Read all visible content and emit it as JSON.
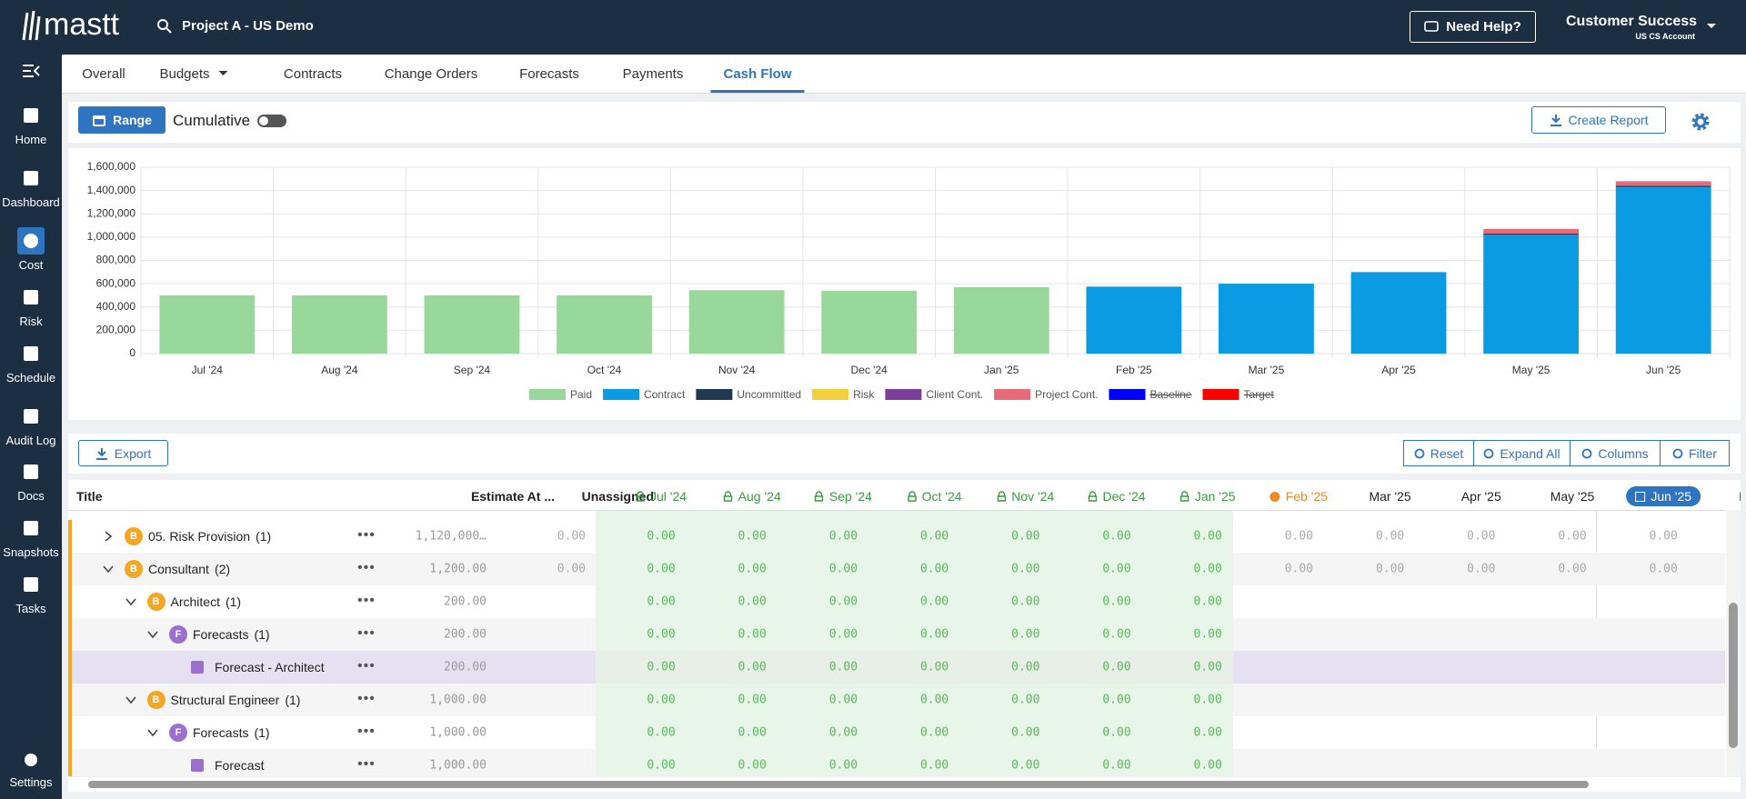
{
  "header": {
    "logo": "mastt",
    "project": "Project A - US Demo",
    "help": "Need Help?",
    "user": "Customer Success",
    "account": "US CS Account"
  },
  "sidebar": {
    "items": [
      "Home",
      "Dashboard",
      "Cost",
      "Risk",
      "Schedule",
      "Audit Log",
      "Docs",
      "Snapshots",
      "Tasks"
    ],
    "active": "Cost",
    "footer": "Settings"
  },
  "tabs": {
    "items": [
      "Overall",
      "Budgets",
      "Contracts",
      "Change Orders",
      "Forecasts",
      "Payments",
      "Cash Flow"
    ],
    "active": "Cash Flow"
  },
  "toolbar": {
    "range": "Range",
    "cumulative": "Cumulative",
    "report": "Create Report"
  },
  "chart_data": {
    "type": "stacked-bar",
    "categories": [
      "Jul '24",
      "Aug '24",
      "Sep '24",
      "Oct '24",
      "Nov '24",
      "Dec '24",
      "Jan '25",
      "Feb '25",
      "Mar '25",
      "Apr '25",
      "May '25",
      "Jun '25"
    ],
    "series": [
      {
        "name": "Paid",
        "color": "#98d99b",
        "values": [
          500000,
          500000,
          500000,
          500000,
          545000,
          540000,
          570000,
          0,
          0,
          0,
          0,
          0
        ]
      },
      {
        "name": "Contract",
        "color": "#0a9be3",
        "values": [
          0,
          0,
          0,
          0,
          0,
          0,
          0,
          575000,
          600000,
          700000,
          1020000,
          1430000
        ]
      },
      {
        "name": "Uncommitted",
        "color": "#1f3a52",
        "values": [
          0,
          0,
          0,
          0,
          0,
          0,
          0,
          0,
          0,
          0,
          10000,
          10000
        ]
      },
      {
        "name": "Risk",
        "color": "#f2d03b",
        "values": [
          0,
          0,
          0,
          0,
          0,
          0,
          0,
          0,
          0,
          0,
          0,
          0
        ]
      },
      {
        "name": "Client Cont.",
        "color": "#7b3f99",
        "values": [
          0,
          0,
          0,
          0,
          0,
          0,
          0,
          0,
          0,
          0,
          0,
          0
        ]
      },
      {
        "name": "Project Cont.",
        "color": "#e86b7a",
        "values": [
          0,
          0,
          0,
          0,
          0,
          0,
          0,
          0,
          0,
          0,
          40000,
          40000
        ]
      },
      {
        "name": "Baseline",
        "color": "#0000ff",
        "hidden": true,
        "values": [
          null,
          null,
          null,
          null,
          null,
          null,
          null,
          null,
          null,
          null,
          null,
          null
        ]
      },
      {
        "name": "Target",
        "color": "#ff0000",
        "hidden": true,
        "values": [
          null,
          null,
          null,
          null,
          null,
          null,
          null,
          null,
          null,
          null,
          null,
          null
        ]
      }
    ],
    "ylim": [
      0,
      1600000
    ],
    "yticks": [
      0,
      {
        "value": 200000,
        "label": "200,000"
      },
      {
        "value": 400000,
        "label": "400,000"
      },
      {
        "value": 600000,
        "label": "600,000"
      },
      {
        "value": 800000,
        "label": "800,000"
      },
      {
        "value": 1000000,
        "label": "1,000,000"
      },
      {
        "value": 1200000,
        "label": "1,200,000"
      },
      {
        "value": 1400000,
        "label": "1,400,000"
      },
      {
        "value": 1600000,
        "label": "1,600,000"
      }
    ],
    "grid": true,
    "legend": "bottom"
  },
  "table_toolbar": {
    "export": "Export",
    "buttons": [
      "Reset",
      "Expand All",
      "Columns",
      "Filter"
    ]
  },
  "table": {
    "columns": [
      "Title",
      "Estimate At ...",
      "Unassigned",
      "Jul '24",
      "Aug '24",
      "Sep '24",
      "Oct '24",
      "Nov '24",
      "Dec '24",
      "Jan '25",
      "Feb '25",
      "Mar '25",
      "Apr '25",
      "May '25",
      "Jun '25",
      "Paid '"
    ],
    "locked": 7,
    "current": "Feb '25",
    "selected": "Jun '25",
    "rows": [
      {
        "title": "05. Risk Provision",
        "count": "(1)",
        "badge": "B",
        "level": 0,
        "expanded": false,
        "estimate": "1,120,000…",
        "unassigned": "0.00",
        "cells": [
          "0.00",
          "0.00",
          "0.00",
          "0.00",
          "0.00",
          "0.00",
          "0.00",
          "0.00",
          "0.00",
          "0.00",
          "0.00",
          "0.00"
        ]
      },
      {
        "title": "Consultant",
        "count": "(2)",
        "badge": "B",
        "level": 0,
        "expanded": true,
        "estimate": "1,200.00",
        "unassigned": "0.00",
        "cells": [
          "0.00",
          "0.00",
          "0.00",
          "0.00",
          "0.00",
          "0.00",
          "0.00",
          "0.00",
          "0.00",
          "0.00",
          "0.00",
          "0.00"
        ]
      },
      {
        "title": "Architect",
        "count": "(1)",
        "badge": "B",
        "level": 1,
        "expanded": true,
        "estimate": "200.00",
        "cells": [
          "0.00",
          "0.00",
          "0.00",
          "0.00",
          "0.00",
          "0.00",
          "0.00"
        ]
      },
      {
        "title": "Forecasts",
        "count": "(1)",
        "badge": "F",
        "level": 2,
        "expanded": true,
        "estimate": "200.00",
        "cells": [
          "0.00",
          "0.00",
          "0.00",
          "0.00",
          "0.00",
          "0.00",
          "0.00"
        ]
      },
      {
        "title": "Forecast - Architect",
        "level": 3,
        "estimate": "200.00",
        "cells": [
          "0.00",
          "0.00",
          "0.00",
          "0.00",
          "0.00",
          "0.00",
          "0.00"
        ]
      },
      {
        "title": "Structural Engineer",
        "count": "(1)",
        "badge": "B",
        "level": 1,
        "expanded": true,
        "estimate": "1,000.00",
        "cells": [
          "0.00",
          "0.00",
          "0.00",
          "0.00",
          "0.00",
          "0.00",
          "0.00"
        ]
      },
      {
        "title": "Forecasts",
        "count": "(1)",
        "badge": "F",
        "level": 2,
        "expanded": true,
        "estimate": "1,000.00",
        "cells": [
          "0.00",
          "0.00",
          "0.00",
          "0.00",
          "0.00",
          "0.00",
          "0.00"
        ]
      },
      {
        "title": "Forecast",
        "level": 3,
        "estimate": "1,000.00",
        "cells": [
          "0.00",
          "0.00",
          "0.00",
          "0.00",
          "0.00",
          "0.00",
          "0.00"
        ]
      }
    ]
  }
}
